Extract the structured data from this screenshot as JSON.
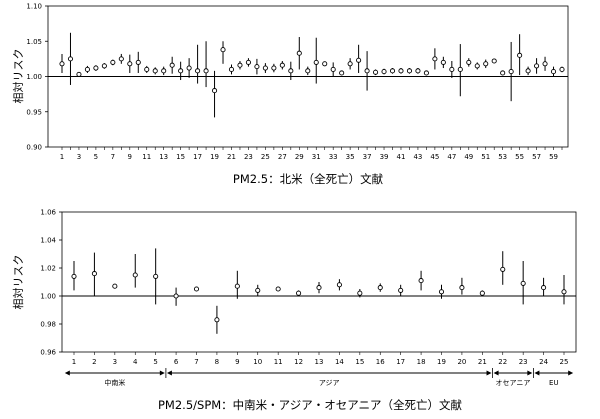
{
  "chart_data": [
    {
      "type": "scatter",
      "subtype": "point-estimate-with-error-bars",
      "caption": "PM2.5：北米（全死亡）文献",
      "ylabel": "相対リスク",
      "ylim": [
        0.9,
        1.1
      ],
      "yticks": [
        "0.90",
        "0.95",
        "1.00",
        "1.05",
        "1.10"
      ],
      "reference_line": 1.0,
      "x": [
        1,
        2,
        3,
        4,
        5,
        6,
        7,
        8,
        9,
        10,
        11,
        12,
        13,
        14,
        15,
        16,
        17,
        18,
        19,
        20,
        21,
        22,
        23,
        24,
        25,
        26,
        27,
        28,
        29,
        30,
        31,
        32,
        33,
        34,
        35,
        36,
        37,
        38,
        39,
        40,
        41,
        42,
        43,
        44,
        45,
        46,
        47,
        48,
        49,
        50,
        51,
        52,
        53,
        54,
        55,
        56,
        57,
        58,
        59,
        60
      ],
      "x_tick_labels": [
        "1",
        "3",
        "5",
        "7",
        "9",
        "11",
        "13",
        "15",
        "17",
        "19",
        "21",
        "23",
        "25",
        "27",
        "29",
        "31",
        "33",
        "35",
        "37",
        "39",
        "41",
        "43",
        "45",
        "47",
        "49",
        "51",
        "53",
        "55",
        "57",
        "59"
      ],
      "values": [
        1.018,
        1.025,
        1.003,
        1.01,
        1.012,
        1.015,
        1.02,
        1.025,
        1.018,
        1.02,
        1.01,
        1.008,
        1.008,
        1.016,
        1.008,
        1.012,
        1.008,
        1.008,
        0.98,
        1.038,
        1.01,
        1.016,
        1.02,
        1.014,
        1.012,
        1.012,
        1.016,
        1.008,
        1.033,
        1.008,
        1.02,
        1.018,
        1.01,
        1.005,
        1.018,
        1.023,
        1.008,
        1.006,
        1.007,
        1.008,
        1.008,
        1.008,
        1.008,
        1.005,
        1.025,
        1.02,
        1.01,
        1.01,
        1.02,
        1.015,
        1.018,
        1.022,
        1.005,
        1.007,
        1.03,
        1.008,
        1.015,
        1.018,
        1.007,
        1.01
      ],
      "lower": [
        1.005,
        0.988,
        1.0,
        1.005,
        1.008,
        1.011,
        1.016,
        1.018,
        1.005,
        1.005,
        1.005,
        1.003,
        1.002,
        1.004,
        0.995,
        0.998,
        0.99,
        0.985,
        0.942,
        1.018,
        1.003,
        1.01,
        1.014,
        1.003,
        1.005,
        1.006,
        1.01,
        0.995,
        1.01,
        1.002,
        0.99,
        1.016,
        1.0,
        1.002,
        1.01,
        1.005,
        0.98,
        1.002,
        1.003,
        1.004,
        1.004,
        1.004,
        1.004,
        1.002,
        1.01,
        1.012,
        0.998,
        0.972,
        1.014,
        1.01,
        1.012,
        1.02,
        1.002,
        0.965,
        1.002,
        1.002,
        1.004,
        1.008,
        1.0,
        1.006
      ],
      "upper": [
        1.032,
        1.062,
        1.006,
        1.015,
        1.016,
        1.019,
        1.024,
        1.032,
        1.031,
        1.035,
        1.015,
        1.013,
        1.014,
        1.028,
        1.021,
        1.026,
        1.045,
        1.05,
        1.008,
        1.05,
        1.017,
        1.022,
        1.026,
        1.025,
        1.019,
        1.018,
        1.022,
        1.021,
        1.056,
        1.014,
        1.055,
        1.02,
        1.02,
        1.008,
        1.026,
        1.045,
        1.036,
        1.01,
        1.011,
        1.012,
        1.012,
        1.012,
        1.012,
        1.008,
        1.04,
        1.028,
        1.022,
        1.046,
        1.026,
        1.02,
        1.024,
        1.024,
        1.008,
        1.049,
        1.06,
        1.014,
        1.026,
        1.028,
        1.014,
        1.014
      ]
    },
    {
      "type": "scatter",
      "subtype": "point-estimate-with-error-bars",
      "caption": "PM2.5/SPM：中南米・アジア・オセアニア（全死亡）文献",
      "ylabel": "相対リスク",
      "ylim": [
        0.96,
        1.06
      ],
      "yticks": [
        "0.96",
        "0.98",
        "1.00",
        "1.02",
        "1.04",
        "1.06"
      ],
      "reference_line": 1.0,
      "x": [
        1,
        2,
        3,
        4,
        5,
        6,
        7,
        8,
        9,
        10,
        11,
        12,
        13,
        14,
        15,
        16,
        17,
        18,
        19,
        20,
        21,
        22,
        23,
        24,
        25
      ],
      "x_tick_labels": [
        "1",
        "2",
        "3",
        "4",
        "5",
        "6",
        "7",
        "8",
        "9",
        "10",
        "11",
        "12",
        "13",
        "14",
        "15",
        "16",
        "17",
        "18",
        "19",
        "20",
        "21",
        "22",
        "23",
        "24",
        "25"
      ],
      "values": [
        1.014,
        1.016,
        1.007,
        1.015,
        1.014,
        1.0,
        1.005,
        0.983,
        1.007,
        1.004,
        1.005,
        1.002,
        1.006,
        1.008,
        1.002,
        1.006,
        1.004,
        1.011,
        1.003,
        1.006,
        1.002,
        1.019,
        1.009,
        1.006,
        1.003
      ],
      "lower": [
        1.004,
        1.0,
        1.006,
        1.006,
        0.994,
        0.993,
        1.004,
        0.973,
        0.998,
        1.0,
        1.004,
        1.0,
        1.002,
        1.004,
        0.999,
        1.003,
        1.0,
        1.004,
        0.998,
        1.001,
        1.0,
        1.008,
        0.994,
        1.0,
        0.994
      ],
      "upper": [
        1.025,
        1.031,
        1.008,
        1.03,
        1.034,
        1.006,
        1.006,
        0.993,
        1.018,
        1.008,
        1.006,
        1.004,
        1.01,
        1.012,
        1.005,
        1.009,
        1.008,
        1.018,
        1.008,
        1.013,
        1.004,
        1.032,
        1.025,
        1.013,
        1.015
      ],
      "regions": [
        {
          "label": "中南米",
          "from": 1,
          "to": 5
        },
        {
          "label": "アジア",
          "from": 6,
          "to": 21
        },
        {
          "label": "オセアニア",
          "from": 22,
          "to": 23
        },
        {
          "label": "EU",
          "from": 24,
          "to": 25
        }
      ]
    }
  ]
}
